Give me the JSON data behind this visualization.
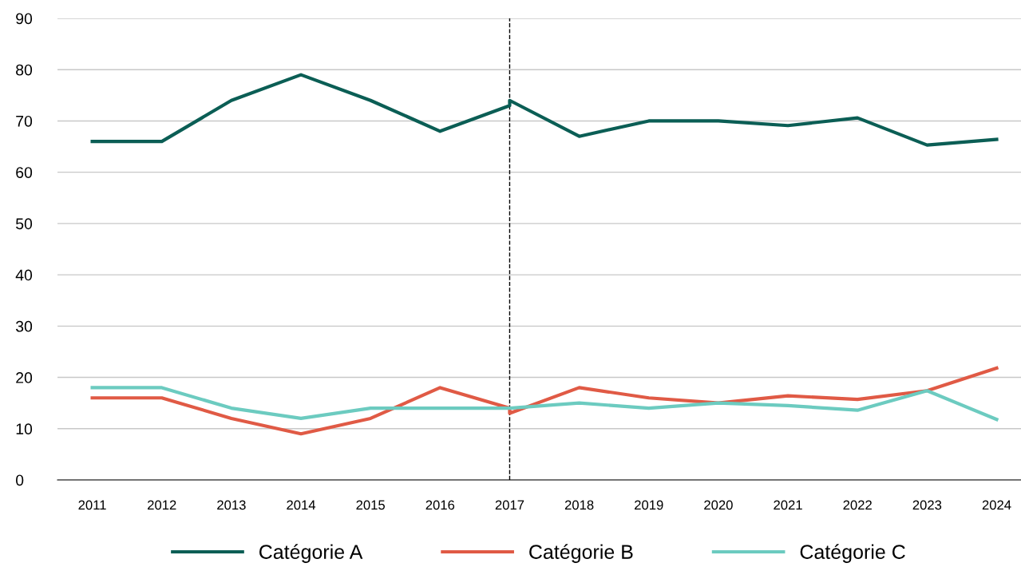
{
  "chart_data": {
    "type": "line",
    "x": [
      2011,
      2012,
      2013,
      2014,
      2015,
      2016,
      2017,
      2017,
      2018,
      2019,
      2020,
      2021,
      2022,
      2023,
      2024
    ],
    "series": [
      {
        "name": "Catégorie A",
        "color": "#0b5e55",
        "values": [
          66,
          66,
          74,
          79,
          74,
          68,
          73,
          74,
          67,
          70,
          70,
          69.1,
          70.6,
          65.3,
          66.4
        ]
      },
      {
        "name": "Catégorie B",
        "color": "#e05a45",
        "values": [
          16,
          16,
          12,
          9,
          12,
          18,
          14,
          13,
          18,
          16,
          15,
          16.4,
          15.7,
          17.4,
          21.8
        ]
      },
      {
        "name": "Catégorie C",
        "color": "#6ccbc0",
        "values": [
          18,
          18,
          14,
          12,
          14,
          14,
          14,
          14,
          15,
          14,
          15,
          14.5,
          13.6,
          17.4,
          11.8
        ]
      }
    ],
    "xlim": [
      2010.5,
      2024.35
    ],
    "xticks": [
      2011,
      2012,
      2013,
      2014,
      2015,
      2016,
      2017,
      2018,
      2019,
      2020,
      2021,
      2022,
      2023,
      2024
    ],
    "ylim": [
      0,
      90
    ],
    "yticks": [
      0,
      10,
      20,
      30,
      40,
      50,
      60,
      70,
      80,
      90
    ],
    "ref_lines": [
      {
        "axis": "x",
        "value": 2017,
        "color": "#000000",
        "line_style": "dashed"
      }
    ],
    "grid": "y",
    "legend": "bottom",
    "marker": "none",
    "line_style": "solid"
  }
}
